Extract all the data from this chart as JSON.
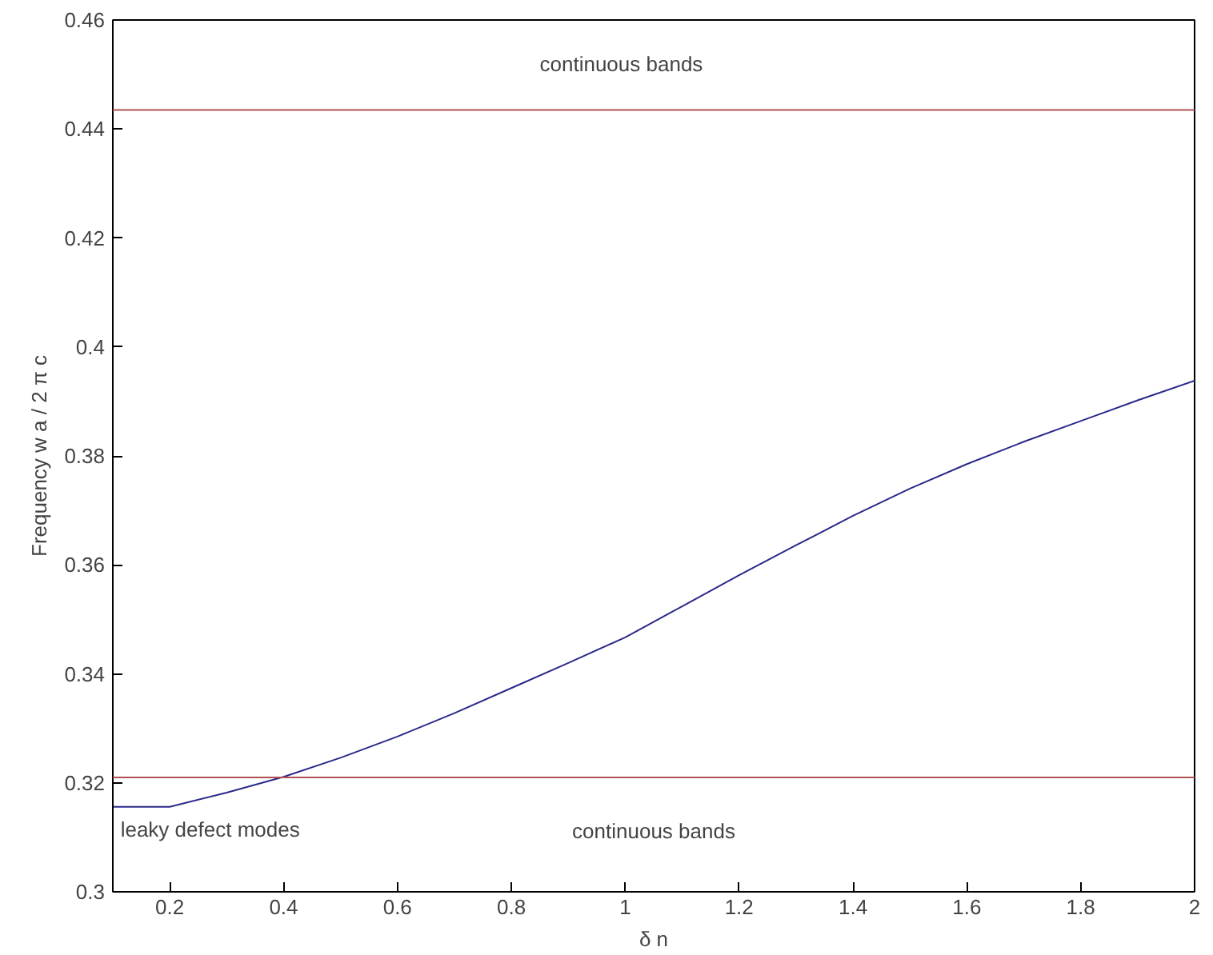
{
  "chart_data": {
    "type": "line",
    "xlabel": "δ n",
    "ylabel": "Frequency w a / 2 π c",
    "x": [
      0.1,
      0.2,
      0.3,
      0.4,
      0.5,
      0.6,
      0.7,
      0.8,
      0.9,
      1.0,
      1.1,
      1.2,
      1.3,
      1.4,
      1.5,
      1.6,
      1.7,
      1.8,
      1.9,
      2.0
    ],
    "series": [
      {
        "color": "#2a2a8a",
        "values": [
          0.3156,
          0.3156,
          0.3182,
          0.3211,
          0.3246,
          0.3285,
          0.3328,
          0.3374,
          0.342,
          0.3467,
          0.3524,
          0.3581,
          0.3636,
          0.369,
          0.374,
          0.3785,
          0.3826,
          0.3864,
          0.3902,
          0.3938
        ]
      }
    ],
    "xlim": [
      0.1,
      2
    ],
    "ylim": [
      0.3,
      0.46
    ],
    "xticks": [
      0.2,
      0.4,
      0.6,
      0.8,
      1,
      1.2,
      1.4,
      1.6,
      1.8,
      2
    ],
    "yticks": [
      0.3,
      0.32,
      0.34,
      0.36,
      0.38,
      0.4,
      0.42,
      0.44,
      0.46
    ],
    "ref_lines": [
      {
        "axis": "y",
        "value": 0.4435,
        "color": "#b05050"
      },
      {
        "axis": "y",
        "value": 0.321,
        "color": "#b05050"
      }
    ],
    "annotations": [
      "continuous bands",
      "continuous bands",
      "leaky defect modes"
    ],
    "grid": false
  }
}
